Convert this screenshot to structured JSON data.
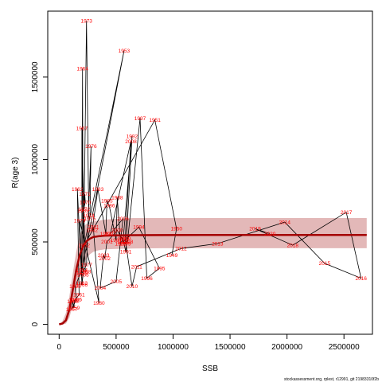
{
  "footer": "stockassessment.org, rplest, r12991, git 21983310f2b",
  "chart_data": {
    "type": "scatter",
    "xlabel": "SSB",
    "ylabel": "R(age 3)",
    "xlim": [
      -100000,
      2750000
    ],
    "ylim": [
      -60000,
      1900000
    ],
    "x_ticks": [
      0,
      500000,
      1000000,
      1500000,
      2000000,
      2500000
    ],
    "x_tick_labels": [
      "0",
      "500000",
      "1000000",
      "1500000",
      "2000000",
      "2500000"
    ],
    "y_ticks": [
      0,
      500000,
      1000000,
      1500000
    ],
    "y_tick_labels": [
      "0",
      "500000",
      "1000000",
      "1500000"
    ],
    "colors": {
      "points": "#ff0000",
      "line": "#000000",
      "fit": "#a50000",
      "band": "#d9a0a0"
    },
    "fit_curve": {
      "name": "",
      "x": [
        0,
        30000,
        60000,
        90000,
        120000,
        150000,
        180000,
        210000,
        240000,
        270000,
        300000,
        350000,
        400000,
        500000,
        650000,
        900000,
        1300000,
        1800000,
        2300000,
        2700000
      ],
      "y": [
        0,
        5000,
        25000,
        90000,
        210000,
        330000,
        420000,
        475000,
        505000,
        520000,
        530000,
        535000,
        538000,
        540000,
        541000,
        541500,
        542000,
        542000,
        542000,
        542000
      ],
      "band_lower": [
        0,
        0,
        5000,
        40000,
        120000,
        200000,
        290000,
        360000,
        400000,
        425000,
        440000,
        450000,
        455000,
        458000,
        460000,
        462000,
        462000,
        462000,
        462000,
        462000
      ],
      "band_upper": [
        0,
        20000,
        70000,
        170000,
        310000,
        440000,
        540000,
        590000,
        610000,
        620000,
        625000,
        630000,
        635000,
        640000,
        645000,
        645000,
        645000,
        645000,
        645000,
        645000
      ]
    },
    "points": [
      {
        "label": "1957",
        "x": 110000,
        "y": 90000
      },
      {
        "label": "1958",
        "x": 120000,
        "y": 140000
      },
      {
        "label": "1959",
        "x": 130000,
        "y": 100000
      },
      {
        "label": "1960",
        "x": 135000,
        "y": 145000
      },
      {
        "label": "1961",
        "x": 175000,
        "y": 180000
      },
      {
        "label": "1962",
        "x": 160000,
        "y": 820000
      },
      {
        "label": "1963",
        "x": 200000,
        "y": 250000
      },
      {
        "label": "1964",
        "x": 205000,
        "y": 1550000
      },
      {
        "label": "1965",
        "x": 210000,
        "y": 300000
      },
      {
        "label": "1966",
        "x": 200000,
        "y": 240000
      },
      {
        "label": "1967",
        "x": 200000,
        "y": 1190000
      },
      {
        "label": "1968",
        "x": 230000,
        "y": 320000
      },
      {
        "label": "1969",
        "x": 210000,
        "y": 690000
      },
      {
        "label": "1970",
        "x": 230000,
        "y": 740000
      },
      {
        "label": "1971",
        "x": 225000,
        "y": 790000
      },
      {
        "label": "1972",
        "x": 220000,
        "y": 700000
      },
      {
        "label": "1973",
        "x": 240000,
        "y": 1840000
      },
      {
        "label": "1974",
        "x": 260000,
        "y": 660000
      },
      {
        "label": "1975",
        "x": 270000,
        "y": 640000
      },
      {
        "label": "1976",
        "x": 280000,
        "y": 1080000
      },
      {
        "label": "1977",
        "x": 240000,
        "y": 360000
      },
      {
        "label": "1978",
        "x": 200000,
        "y": 310000
      },
      {
        "label": "1979",
        "x": 180000,
        "y": 630000
      },
      {
        "label": "1980",
        "x": 350000,
        "y": 130000
      },
      {
        "label": "1981",
        "x": 300000,
        "y": 590000
      },
      {
        "label": "1982",
        "x": 290000,
        "y": 570000
      },
      {
        "label": "1983",
        "x": 340000,
        "y": 820000
      },
      {
        "label": "1984",
        "x": 410000,
        "y": 550000
      },
      {
        "label": "1985",
        "x": 420000,
        "y": 750000
      },
      {
        "label": "1986",
        "x": 440000,
        "y": 720000
      },
      {
        "label": "1987",
        "x": 500000,
        "y": 510000
      },
      {
        "label": "1988",
        "x": 510000,
        "y": 770000
      },
      {
        "label": "1989",
        "x": 540000,
        "y": 490000
      },
      {
        "label": "1990",
        "x": 560000,
        "y": 520000
      },
      {
        "label": "1991",
        "x": 585000,
        "y": 440000
      },
      {
        "label": "1992",
        "x": 640000,
        "y": 1140000
      },
      {
        "label": "1993",
        "x": 560000,
        "y": 500000
      },
      {
        "label": "1994",
        "x": 700000,
        "y": 590000
      },
      {
        "label": "1995",
        "x": 880000,
        "y": 340000
      },
      {
        "label": "1996",
        "x": 770000,
        "y": 280000
      },
      {
        "label": "1997",
        "x": 710000,
        "y": 1250000
      },
      {
        "label": "1998",
        "x": 600000,
        "y": 500000
      },
      {
        "label": "1999",
        "x": 580000,
        "y": 490000
      },
      {
        "label": "2000",
        "x": 510000,
        "y": 570000
      },
      {
        "label": "2001",
        "x": 420000,
        "y": 500000
      },
      {
        "label": "2002",
        "x": 400000,
        "y": 400000
      },
      {
        "label": "2003",
        "x": 390000,
        "y": 420000
      },
      {
        "label": "2004",
        "x": 360000,
        "y": 220000
      },
      {
        "label": "2005",
        "x": 500000,
        "y": 260000
      },
      {
        "label": "2006",
        "x": 560000,
        "y": 640000
      },
      {
        "label": "2007",
        "x": 450000,
        "y": 550000
      },
      {
        "label": "2008",
        "x": 630000,
        "y": 1110000
      },
      {
        "label": "2009",
        "x": 580000,
        "y": 520000
      },
      {
        "label": "2010",
        "x": 640000,
        "y": 230000
      },
      {
        "label": "2011",
        "x": 680000,
        "y": 350000
      },
      {
        "label": "2012",
        "x": 1070000,
        "y": 460000
      },
      {
        "label": "2013",
        "x": 1390000,
        "y": 490000
      },
      {
        "label": "2014",
        "x": 1980000,
        "y": 620000
      },
      {
        "label": "2015",
        "x": 2330000,
        "y": 370000
      },
      {
        "label": "2016",
        "x": 2650000,
        "y": 280000
      },
      {
        "label": "2017",
        "x": 2520000,
        "y": 680000
      },
      {
        "label": "2018",
        "x": 2050000,
        "y": 480000
      },
      {
        "label": "2019",
        "x": 1720000,
        "y": 580000
      },
      {
        "label": "2020",
        "x": 1850000,
        "y": 550000
      },
      {
        "label": "1949",
        "x": 990000,
        "y": 420000
      },
      {
        "label": "1950",
        "x": 1030000,
        "y": 580000
      },
      {
        "label": "1951",
        "x": 840000,
        "y": 1240000
      },
      {
        "label": "1952",
        "x": 220000,
        "y": 480000
      },
      {
        "label": "1953",
        "x": 570000,
        "y": 1660000
      },
      {
        "label": "1954",
        "x": 200000,
        "y": 330000
      },
      {
        "label": "1955",
        "x": 140000,
        "y": 230000
      },
      {
        "label": "1956",
        "x": 150000,
        "y": 150000
      }
    ]
  }
}
